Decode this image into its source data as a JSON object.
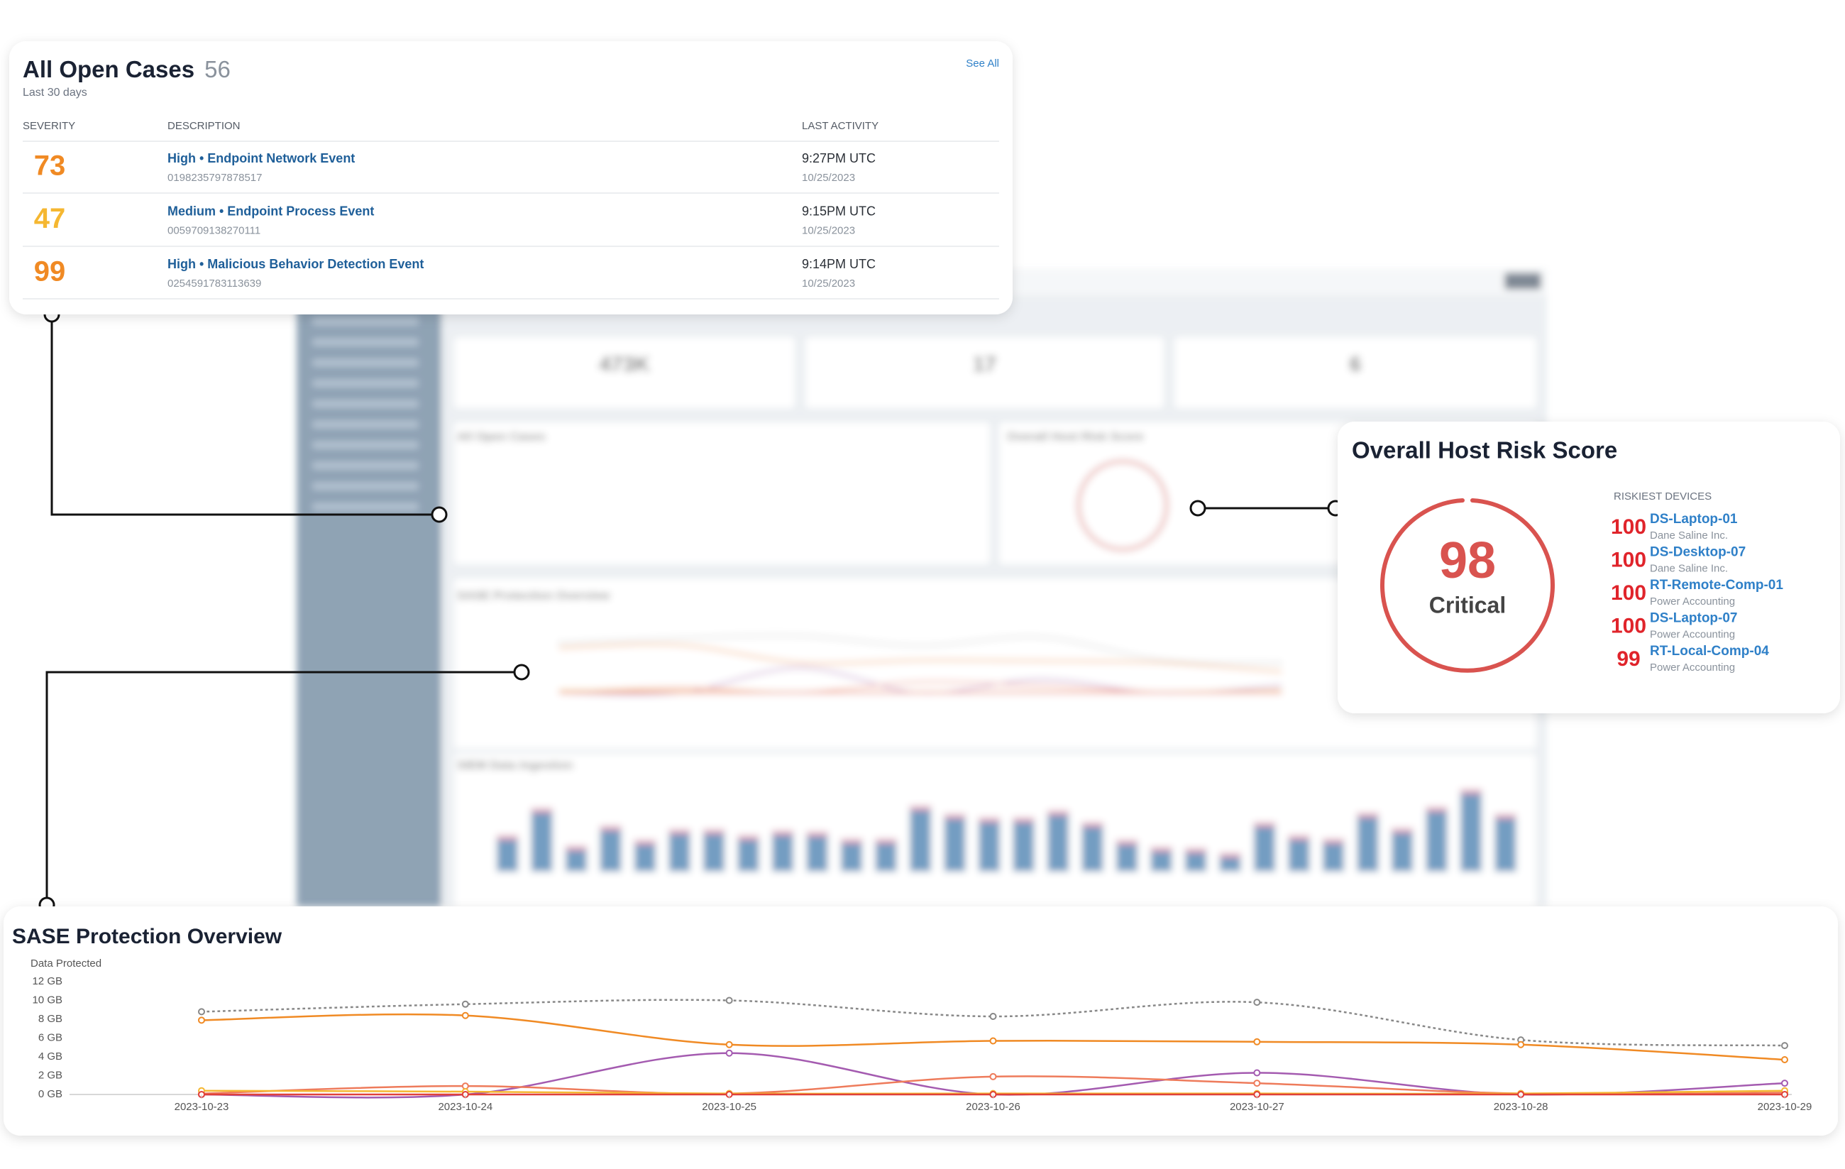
{
  "background": {
    "stats": [
      "473K",
      "17",
      "6"
    ],
    "panel_titles": [
      "All Open Cases",
      "Overall Host Risk Score",
      "SASE Protection Overview",
      "SIEM Data Ingestion"
    ],
    "siem_bars": [
      27,
      50,
      18,
      35,
      23,
      32,
      32,
      27,
      31,
      30,
      24,
      24,
      52,
      45,
      42,
      42,
      48,
      38,
      23,
      17,
      16,
      12,
      38,
      27,
      24,
      46,
      33,
      51,
      66,
      45
    ]
  },
  "cases": {
    "title": "All Open Cases",
    "count": 56,
    "subtitle": "Last 30 days",
    "see_all": "See All",
    "columns": [
      "SEVERITY",
      "DESCRIPTION",
      "LAST ACTIVITY"
    ],
    "rows": [
      {
        "score": 73,
        "color": "#f08a24",
        "description": "High • Endpoint Network Event",
        "id": "0198235797878517",
        "time": "9:27PM UTC",
        "date": "10/25/2023"
      },
      {
        "score": 47,
        "color": "#f5b731",
        "description": "Medium • Endpoint Process Event",
        "id": "0059709138270111",
        "time": "9:15PM UTC",
        "date": "10/25/2023"
      },
      {
        "score": 99,
        "color": "#f08a24",
        "description": "High • Malicious Behavior Detection Event",
        "id": "0254591783113639",
        "time": "9:14PM UTC",
        "date": "10/25/2023"
      }
    ]
  },
  "risk": {
    "title": "Overall Host Risk Score",
    "score": 98,
    "status": "Critical",
    "color": "#d9534f",
    "devices_heading": "RISKIEST DEVICES",
    "devices": [
      {
        "score": 100,
        "name": "DS-Laptop-01",
        "org": "Dane Saline Inc."
      },
      {
        "score": 100,
        "name": "DS-Desktop-07",
        "org": "Dane Saline Inc."
      },
      {
        "score": 100,
        "name": "RT-Remote-Comp-01",
        "org": "Power Accounting"
      },
      {
        "score": 100,
        "name": "DS-Laptop-07",
        "org": "Power Accounting"
      },
      {
        "score": 99,
        "name": "RT-Local-Comp-04",
        "org": "Power Accounting"
      }
    ]
  },
  "chart_data": {
    "type": "line",
    "title": "SASE Protection Overview",
    "y_label": "Data Protected",
    "x": [
      "2023-10-23",
      "2023-10-24",
      "2023-10-25",
      "2023-10-26",
      "2023-10-27",
      "2023-10-28",
      "2023-10-29"
    ],
    "ylim": [
      0,
      12
    ],
    "yticks": [
      {
        "value": 0,
        "label": "0 GB"
      },
      {
        "value": 2,
        "label": "2 GB"
      },
      {
        "value": 4,
        "label": "4 GB"
      },
      {
        "value": 6,
        "label": "6 GB"
      },
      {
        "value": 8,
        "label": "8 GB"
      },
      {
        "value": 10,
        "label": "10 GB"
      },
      {
        "value": 12,
        "label": "12 GB"
      }
    ],
    "series": [
      {
        "color": "#888888",
        "dashed": true,
        "values": [
          8.8,
          9.6,
          10,
          8.3,
          9.8,
          5.8,
          5.2
        ]
      },
      {
        "color": "#f08a24",
        "values": [
          7.9,
          8.4,
          5.3,
          5.7,
          5.6,
          5.3,
          3.7
        ]
      },
      {
        "color": "#a45bb0",
        "values": [
          0,
          0,
          4.4,
          0,
          2.3,
          0,
          1.2
        ]
      },
      {
        "color": "#ee7b5b",
        "values": [
          0.1,
          0.9,
          0.1,
          1.9,
          1.2,
          0.1,
          0.2
        ]
      },
      {
        "color": "#f5b731",
        "values": [
          0.4,
          0.3,
          0.1,
          0.1,
          0.1,
          0.1,
          0.4
        ]
      },
      {
        "color": "#e0413a",
        "values": [
          0,
          0,
          0,
          0,
          0,
          0,
          0
        ]
      }
    ]
  }
}
